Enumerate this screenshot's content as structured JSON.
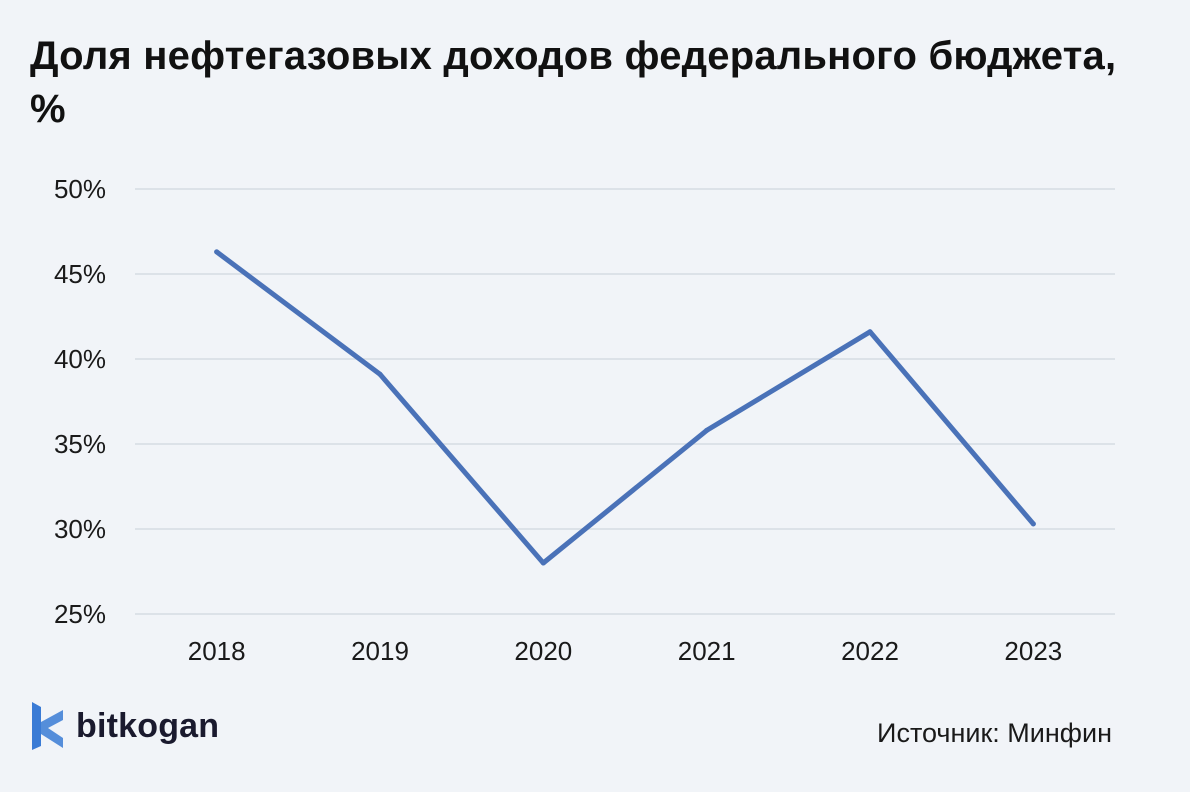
{
  "chart_data": {
    "type": "line",
    "title": "Доля нефтегазовых доходов федерального бюджета, %",
    "categories": [
      "2018",
      "2019",
      "2020",
      "2021",
      "2022",
      "2023"
    ],
    "series": [
      {
        "values": [
          46.3,
          39.1,
          28.0,
          35.8,
          41.6,
          30.3
        ],
        "color": "#4a72b8"
      }
    ],
    "ylim": [
      25,
      50
    ],
    "yticks": [
      25,
      30,
      35,
      40,
      45,
      50
    ],
    "ytick_labels": [
      "25%",
      "30%",
      "35%",
      "40%",
      "45%",
      "50%"
    ],
    "grid": true,
    "legend": "none"
  },
  "brand": {
    "name": "bitkogan",
    "icon": "bitkogan-logo-icon",
    "color": "#3a7bd5"
  },
  "source": "Источник: Минфин",
  "colors": {
    "background": "#f1f4f8",
    "line": "#4a72b8",
    "grid": "#d6dbe2"
  }
}
